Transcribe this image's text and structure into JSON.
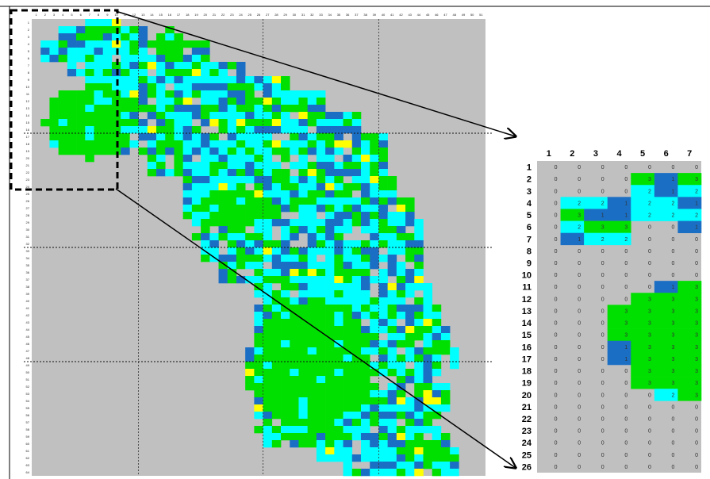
{
  "palette": {
    "background": "#c0c0c0",
    "class_1": "#1a6fc4",
    "class_2": "#00ffff",
    "class_3": "#00e000",
    "class_4": "#ffff00"
  },
  "zoom": {
    "col_labels": [
      "1",
      "2",
      "3",
      "4",
      "5",
      "6",
      "7"
    ],
    "row_labels": [
      "1",
      "2",
      "3",
      "4",
      "5",
      "6",
      "7",
      "8",
      "9",
      "10",
      "11",
      "12",
      "13",
      "14",
      "15",
      "16",
      "17",
      "18",
      "19",
      "20",
      "21",
      "22",
      "23",
      "24",
      "25",
      "26"
    ],
    "values": [
      [
        0,
        0,
        0,
        0,
        0,
        0,
        0
      ],
      [
        0,
        0,
        0,
        0,
        3,
        1,
        3
      ],
      [
        0,
        0,
        0,
        0,
        2,
        1,
        2
      ],
      [
        0,
        2,
        2,
        1,
        2,
        2,
        1
      ],
      [
        0,
        3,
        1,
        1,
        2,
        2,
        2
      ],
      [
        0,
        2,
        3,
        3,
        0,
        0,
        1
      ],
      [
        0,
        1,
        2,
        2,
        0,
        0,
        0
      ],
      [
        0,
        0,
        0,
        0,
        0,
        0,
        0
      ],
      [
        0,
        0,
        0,
        0,
        0,
        0,
        0
      ],
      [
        0,
        0,
        0,
        0,
        0,
        0,
        0
      ],
      [
        0,
        0,
        0,
        0,
        0,
        1,
        3
      ],
      [
        0,
        0,
        0,
        0,
        3,
        3,
        3
      ],
      [
        0,
        0,
        0,
        3,
        3,
        3,
        3
      ],
      [
        0,
        0,
        0,
        3,
        3,
        3,
        3
      ],
      [
        0,
        0,
        0,
        3,
        3,
        3,
        3
      ],
      [
        0,
        0,
        0,
        1,
        3,
        3,
        3
      ],
      [
        0,
        0,
        0,
        1,
        3,
        3,
        3
      ],
      [
        0,
        0,
        0,
        0,
        3,
        3,
        3
      ],
      [
        0,
        0,
        0,
        0,
        3,
        3,
        3
      ],
      [
        0,
        0,
        0,
        0,
        0,
        2,
        3
      ],
      [
        0,
        0,
        0,
        0,
        0,
        0,
        0
      ],
      [
        0,
        0,
        0,
        0,
        0,
        0,
        0
      ],
      [
        0,
        0,
        0,
        0,
        0,
        0,
        0
      ],
      [
        0,
        0,
        0,
        0,
        0,
        0,
        0
      ],
      [
        0,
        0,
        0,
        0,
        0,
        0,
        0
      ],
      [
        0,
        0,
        0,
        0,
        0,
        0,
        0
      ]
    ]
  },
  "main_grid": {
    "cols": 51,
    "rows": 64,
    "row_bands": [
      {
        "from": 1,
        "to": 1,
        "start": 7,
        "end": 10
      },
      {
        "from": 2,
        "to": 3,
        "start": 4,
        "end": 13
      },
      {
        "from": 4,
        "to": 6,
        "start": 2,
        "end": 20
      },
      {
        "from": 7,
        "to": 8,
        "start": 5,
        "end": 24
      },
      {
        "from": 9,
        "to": 10,
        "start": 7,
        "end": 29
      },
      {
        "from": 11,
        "to": 13,
        "start": 4,
        "end": 33
      },
      {
        "from": 14,
        "to": 16,
        "start": 5,
        "end": 37
      },
      {
        "from": 17,
        "to": 19,
        "start": 6,
        "end": 40
      },
      {
        "from": 20,
        "to": 22,
        "start": 14,
        "end": 40
      },
      {
        "from": 23,
        "to": 25,
        "start": 18,
        "end": 41
      },
      {
        "from": 26,
        "to": 28,
        "start": 18,
        "end": 43
      },
      {
        "from": 29,
        "to": 31,
        "start": 19,
        "end": 44
      },
      {
        "from": 32,
        "to": 34,
        "start": 20,
        "end": 44
      },
      {
        "from": 35,
        "to": 37,
        "start": 22,
        "end": 44
      },
      {
        "from": 38,
        "to": 40,
        "start": 26,
        "end": 45
      },
      {
        "from": 41,
        "to": 43,
        "start": 26,
        "end": 46
      },
      {
        "from": 44,
        "to": 46,
        "start": 26,
        "end": 47
      },
      {
        "from": 47,
        "to": 49,
        "start": 25,
        "end": 48
      },
      {
        "from": 50,
        "to": 52,
        "start": 25,
        "end": 47
      },
      {
        "from": 53,
        "to": 55,
        "start": 26,
        "end": 47
      },
      {
        "from": 56,
        "to": 58,
        "start": 26,
        "end": 46
      },
      {
        "from": 59,
        "to": 60,
        "start": 27,
        "end": 47
      },
      {
        "from": 61,
        "to": 62,
        "start": 33,
        "end": 48
      },
      {
        "from": 63,
        "to": 64,
        "start": 36,
        "end": 48
      }
    ],
    "green_blobs": [
      {
        "col": 7,
        "row": 15,
        "rx": 5,
        "ry": 5
      },
      {
        "col": 32,
        "row": 49,
        "rx": 7,
        "ry": 9
      },
      {
        "col": 23,
        "row": 27,
        "rx": 4,
        "ry": 3
      },
      {
        "col": 16,
        "row": 4,
        "rx": 2,
        "ry": 2
      }
    ]
  }
}
